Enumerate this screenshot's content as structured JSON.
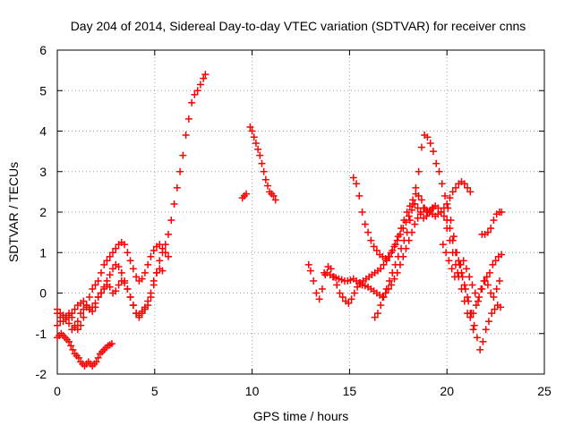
{
  "chart_data": {
    "type": "scatter",
    "title": "Day 204 of 2014, Sidereal Day-to-day VTEC variation (SDTVAR) for receiver cnns",
    "xlabel": "GPS time / hours",
    "ylabel": "SDTVAR / TECUs",
    "xlim": [
      0,
      25
    ],
    "ylim": [
      -2,
      6
    ],
    "xticks": [
      0,
      5,
      10,
      15,
      20,
      25
    ],
    "yticks": [
      -2,
      -1,
      0,
      1,
      2,
      3,
      4,
      5,
      6
    ],
    "grid": true,
    "marker": "+",
    "series_color": "#ff0000",
    "series": [
      {
        "name": "seg1",
        "x": [
          0.0,
          0.1,
          0.2,
          0.3,
          0.4,
          0.5,
          0.6,
          0.7,
          0.8,
          0.9,
          1.0,
          1.1,
          1.2,
          1.3,
          1.4,
          1.5,
          1.6,
          1.7,
          1.8,
          1.9,
          2.0,
          2.1,
          2.2,
          2.3,
          2.4,
          2.5,
          2.6,
          2.7,
          2.8
        ],
        "y": [
          -1.1,
          -1.05,
          -1.0,
          -1.05,
          -1.1,
          -1.15,
          -1.2,
          -1.3,
          -1.4,
          -1.5,
          -1.55,
          -1.6,
          -1.7,
          -1.75,
          -1.8,
          -1.75,
          -1.7,
          -1.75,
          -1.8,
          -1.75,
          -1.7,
          -1.6,
          -1.5,
          -1.45,
          -1.4,
          -1.35,
          -1.3,
          -1.28,
          -1.25
        ]
      },
      {
        "name": "seg2",
        "x": [
          0.0,
          0.15,
          0.3,
          0.45,
          0.6,
          0.75,
          0.9,
          1.05,
          1.2,
          1.35,
          1.5,
          1.65,
          1.8,
          1.95,
          2.1,
          2.25,
          2.4,
          2.55,
          2.7,
          2.85,
          3.0,
          3.15,
          3.3,
          3.45,
          3.6,
          3.75,
          3.9,
          4.05,
          4.2,
          4.35,
          4.5,
          4.65,
          4.8,
          4.95,
          5.1,
          5.25,
          5.4,
          5.55,
          5.7
        ],
        "y": [
          -0.5,
          -0.6,
          -0.7,
          -0.65,
          -0.5,
          -0.6,
          -0.8,
          -0.9,
          -0.8,
          -0.6,
          -0.3,
          -0.1,
          0.1,
          0.2,
          0.3,
          0.5,
          0.7,
          0.8,
          0.9,
          1.0,
          1.1,
          1.2,
          1.25,
          1.2,
          1.0,
          0.8,
          0.6,
          0.4,
          0.3,
          0.35,
          0.5,
          0.7,
          0.9,
          1.05,
          1.15,
          1.2,
          1.1,
          1.0,
          0.9
        ]
      },
      {
        "name": "seg3",
        "x": [
          0.0,
          0.15,
          0.3,
          0.45,
          0.6,
          0.75,
          0.9,
          1.05,
          1.2,
          1.35,
          1.5,
          1.65,
          1.8,
          1.95,
          2.1,
          2.25,
          2.4,
          2.55,
          2.7,
          2.85,
          3.0,
          3.15,
          3.3,
          3.45,
          3.6,
          3.75,
          3.9,
          4.05,
          4.2,
          4.35,
          4.5,
          4.65,
          4.8,
          4.95,
          5.1,
          5.25,
          5.4
        ],
        "y": [
          -0.8,
          -0.7,
          -0.55,
          -0.6,
          -0.75,
          -0.9,
          -0.85,
          -0.7,
          -0.5,
          -0.4,
          -0.35,
          -0.4,
          -0.45,
          -0.35,
          -0.1,
          0.0,
          0.1,
          0.2,
          0.15,
          0.0,
          0.05,
          0.2,
          0.3,
          0.25,
          0.1,
          -0.1,
          -0.3,
          -0.5,
          -0.55,
          -0.45,
          -0.35,
          -0.2,
          0.0,
          0.3,
          0.5,
          0.6,
          0.55
        ]
      },
      {
        "name": "seg4",
        "x": [
          0.0,
          0.15,
          0.3,
          0.45,
          0.6,
          0.75,
          0.9,
          1.05,
          1.2,
          1.35,
          1.5,
          1.65,
          1.8,
          1.95,
          2.1,
          2.25,
          2.4,
          2.55,
          2.7,
          2.85,
          3.0,
          3.15,
          3.3,
          3.45,
          3.6,
          3.75,
          3.9,
          4.05,
          4.2,
          4.35,
          4.5,
          4.65,
          4.8,
          4.95,
          5.1,
          5.25,
          5.4,
          5.55,
          5.7,
          5.85,
          6.0,
          6.15,
          6.3,
          6.45,
          6.6,
          6.75,
          6.9,
          7.05,
          7.2,
          7.35,
          7.5,
          7.6
        ],
        "y": [
          -0.4,
          -0.5,
          -0.55,
          -0.6,
          -0.55,
          -0.5,
          -0.4,
          -0.3,
          -0.25,
          -0.2,
          -0.3,
          -0.4,
          -0.35,
          -0.25,
          -0.1,
          0.0,
          0.15,
          0.3,
          0.45,
          0.6,
          0.7,
          0.65,
          0.5,
          0.3,
          0.1,
          -0.1,
          -0.3,
          -0.5,
          -0.6,
          -0.5,
          -0.4,
          -0.3,
          -0.1,
          0.2,
          0.5,
          0.8,
          1.0,
          1.2,
          1.45,
          1.8,
          2.2,
          2.6,
          3.0,
          3.4,
          3.9,
          4.3,
          4.7,
          4.9,
          5.0,
          5.15,
          5.3,
          5.4
        ]
      },
      {
        "name": "seg5",
        "x": [
          9.5,
          9.6,
          9.7
        ],
        "y": [
          2.35,
          2.4,
          2.45
        ]
      },
      {
        "name": "seg6",
        "x": [
          9.9,
          10.0,
          10.1,
          10.2,
          10.3,
          10.4,
          10.5,
          10.6,
          10.7,
          10.8,
          10.9,
          11.0,
          11.1,
          11.2
        ],
        "y": [
          4.1,
          4.0,
          3.85,
          3.7,
          3.55,
          3.4,
          3.2,
          3.0,
          2.8,
          2.65,
          2.5,
          2.45,
          2.4,
          2.3
        ]
      },
      {
        "name": "seg7",
        "x": [
          12.9,
          13.0,
          13.15,
          13.3,
          13.45,
          13.6,
          13.75,
          13.9,
          14.05,
          14.2,
          14.35,
          14.5,
          14.65,
          14.8,
          14.95,
          15.1,
          15.25,
          15.4,
          15.55,
          15.7,
          15.85,
          16.0,
          16.15,
          16.3,
          16.45,
          16.6,
          16.75,
          16.9,
          17.05,
          17.2,
          17.35,
          17.5,
          17.65,
          17.8,
          17.95,
          18.1,
          18.25,
          18.4,
          18.55,
          18.7,
          18.85,
          19.0,
          19.15,
          19.3
        ],
        "y": [
          0.7,
          0.55,
          0.3,
          0.0,
          -0.15,
          0.1,
          0.45,
          0.65,
          0.6,
          0.4,
          0.2,
          0.0,
          -0.1,
          -0.2,
          -0.25,
          -0.15,
          0.0,
          0.15,
          0.25,
          0.3,
          0.35,
          0.4,
          0.45,
          0.5,
          0.55,
          0.6,
          0.7,
          0.8,
          0.9,
          1.05,
          1.2,
          1.4,
          1.6,
          1.8,
          2.0,
          2.15,
          2.3,
          2.45,
          2.4,
          2.3,
          2.1,
          2.0,
          2.05,
          2.1
        ]
      },
      {
        "name": "seg8",
        "x": [
          15.2,
          15.35,
          15.5,
          15.65,
          15.8,
          15.95,
          16.1,
          16.25,
          16.4,
          16.55,
          16.7,
          16.85,
          17.0,
          17.15,
          17.3,
          17.45,
          17.6,
          17.75,
          17.9,
          18.05,
          18.2,
          18.35,
          18.5,
          18.65,
          18.8,
          18.95,
          19.1,
          19.25,
          19.4,
          19.55,
          19.7,
          19.85,
          20.0,
          20.15,
          20.3,
          20.45,
          20.6,
          20.75,
          20.9,
          21.05,
          21.2,
          21.35
        ],
        "y": [
          2.85,
          2.7,
          2.4,
          2.0,
          1.7,
          1.5,
          1.3,
          1.15,
          1.05,
          0.95,
          0.9,
          0.85,
          0.9,
          1.0,
          1.15,
          1.3,
          1.45,
          1.6,
          1.75,
          1.9,
          2.05,
          2.2,
          2.1,
          1.95,
          1.85,
          1.9,
          2.0,
          2.1,
          2.15,
          2.1,
          2.0,
          1.9,
          1.8,
          1.6,
          1.3,
          1.0,
          0.8,
          0.5,
          0.2,
          -0.1,
          -0.5,
          -0.9
        ]
      },
      {
        "name": "seg9",
        "x": [
          13.7,
          13.85,
          14.0,
          14.15,
          14.3,
          14.45,
          14.6,
          14.75,
          14.9,
          15.05,
          15.2,
          15.35,
          15.5,
          15.65,
          15.8,
          15.95,
          16.1,
          16.25,
          16.4,
          16.55,
          16.7,
          16.85,
          17.0,
          17.15,
          17.3,
          17.45,
          17.6,
          17.75,
          17.9,
          18.05,
          18.2,
          18.35,
          18.5,
          18.65,
          18.8,
          18.95,
          19.1,
          19.25,
          19.4,
          19.55,
          19.7,
          19.85,
          20.0,
          20.15,
          20.3,
          20.45,
          20.6,
          20.75,
          20.9,
          21.05,
          21.2
        ],
        "y": [
          0.5,
          0.5,
          0.45,
          0.4,
          0.38,
          0.35,
          0.33,
          0.3,
          0.3,
          0.32,
          0.35,
          0.3,
          0.25,
          0.2,
          0.18,
          0.15,
          0.1,
          0.05,
          0.0,
          -0.05,
          -0.1,
          0.0,
          0.1,
          0.2,
          0.35,
          0.5,
          0.7,
          0.9,
          1.1,
          1.3,
          1.5,
          1.7,
          1.85,
          2.0,
          2.1,
          2.05,
          2.0,
          1.95,
          1.9,
          1.95,
          2.0,
          2.1,
          2.2,
          2.35,
          2.5,
          2.6,
          2.7,
          2.75,
          2.7,
          2.6,
          2.5
        ]
      },
      {
        "name": "seg10",
        "x": [
          16.3,
          16.45,
          16.6,
          16.75,
          16.9,
          17.05,
          17.2,
          17.35,
          17.5,
          17.65,
          17.8,
          17.95,
          18.1,
          18.25,
          18.4,
          18.55,
          18.7,
          18.85,
          19.0,
          19.15,
          19.3,
          19.45,
          19.6,
          19.75,
          19.9,
          20.05,
          20.2,
          20.35,
          20.5,
          20.65,
          20.8,
          20.95,
          21.1,
          21.25,
          21.4,
          21.55,
          21.7,
          21.85,
          22.0,
          22.15,
          22.3,
          22.45,
          22.6,
          22.75
        ],
        "y": [
          -0.6,
          -0.5,
          -0.3,
          -0.1,
          0.1,
          0.3,
          0.5,
          0.7,
          0.9,
          1.1,
          1.3,
          1.5,
          1.8,
          2.2,
          2.6,
          3.0,
          3.6,
          3.9,
          3.85,
          3.7,
          3.5,
          3.2,
          3.0,
          2.7,
          2.4,
          2.1,
          1.8,
          1.4,
          1.0,
          0.7,
          0.4,
          0.1,
          -0.2,
          -0.5,
          -0.8,
          -1.1,
          -1.4,
          -1.2,
          -0.9,
          -0.7,
          -0.5,
          -0.4,
          -0.3,
          -0.35
        ]
      },
      {
        "name": "seg11",
        "x": [
          19.8,
          19.95,
          20.1,
          20.25,
          20.4,
          20.55,
          20.7,
          20.85,
          21.0,
          21.15,
          21.3,
          21.45,
          21.6,
          21.75,
          21.9,
          22.05,
          22.2,
          22.35,
          22.5,
          22.65,
          22.8
        ],
        "y": [
          1.2,
          1.0,
          0.8,
          0.6,
          0.4,
          0.5,
          0.7,
          0.8,
          0.6,
          0.4,
          0.2,
          0.0,
          -0.2,
          0.1,
          0.3,
          0.4,
          0.5,
          0.7,
          0.8,
          0.9,
          0.95
        ]
      },
      {
        "name": "seg12",
        "x": [
          20.0,
          20.15,
          20.3,
          20.45,
          20.6,
          20.75,
          20.9,
          21.05,
          21.2,
          21.35,
          21.5,
          21.65,
          21.8,
          21.95,
          22.1,
          22.25,
          22.4,
          22.55,
          22.7
        ],
        "y": [
          1.6,
          1.3,
          1.0,
          0.7,
          0.4,
          0.1,
          -0.2,
          -0.5,
          -0.6,
          -0.5,
          -0.3,
          -0.1,
          0.1,
          0.3,
          0.2,
          0.0,
          -0.1,
          0.1,
          0.3
        ]
      },
      {
        "name": "seg13",
        "x": [
          21.8,
          21.95,
          22.1,
          22.25,
          22.4,
          22.55,
          22.7,
          22.8
        ],
        "y": [
          1.45,
          1.45,
          1.5,
          1.6,
          1.8,
          1.95,
          2.0,
          2.0
        ]
      }
    ]
  }
}
